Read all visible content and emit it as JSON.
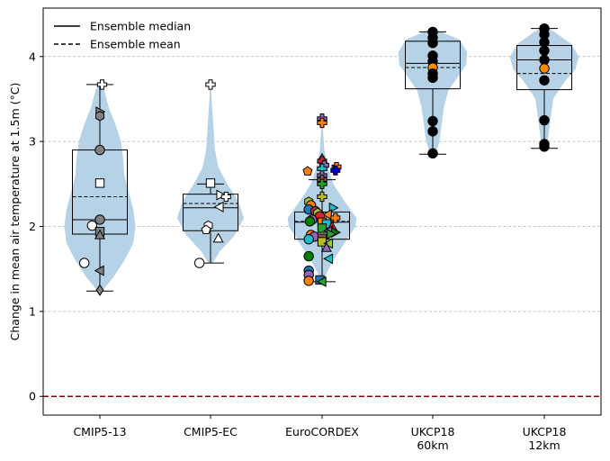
{
  "chart_data": {
    "type": "violin-box-scatter",
    "ylabel": "Change in mean air temperature at 1.5m (°C)",
    "xlabel": "",
    "title": "",
    "ylim": [
      -0.22,
      4.57
    ],
    "yticks": [
      0,
      1,
      2,
      3,
      4
    ],
    "grid": "horizontal dashed at y ticks",
    "zero_line": {
      "y": 0,
      "color": "#8b0000",
      "style": "dashed"
    },
    "legend": {
      "placement": "top-left",
      "entries": [
        {
          "label": "Ensemble median",
          "style": "solid"
        },
        {
          "label": "Ensemble mean",
          "style": "dashed"
        }
      ]
    },
    "categories": [
      {
        "id": "cmip5-13",
        "label_lines": [
          "CMIP5-13"
        ]
      },
      {
        "id": "cmip5-ec",
        "label_lines": [
          "CMIP5-EC"
        ]
      },
      {
        "id": "eurocordex",
        "label_lines": [
          "EuroCORDEX"
        ]
      },
      {
        "id": "ukcp18-60km",
        "label_lines": [
          "UKCP18",
          "60km"
        ]
      },
      {
        "id": "ukcp18-12km",
        "label_lines": [
          "UKCP18",
          "12km"
        ]
      }
    ],
    "violin_color": "#b5d2e6",
    "violins": [
      {
        "min": 1.24,
        "max": 3.68,
        "profile": [
          [
            1.24,
            0.02
          ],
          [
            1.4,
            0.12
          ],
          [
            1.6,
            0.22
          ],
          [
            1.8,
            0.3
          ],
          [
            2.0,
            0.32
          ],
          [
            2.2,
            0.3
          ],
          [
            2.4,
            0.26
          ],
          [
            2.6,
            0.22
          ],
          [
            2.8,
            0.21
          ],
          [
            3.0,
            0.19
          ],
          [
            3.2,
            0.14
          ],
          [
            3.4,
            0.08
          ],
          [
            3.6,
            0.04
          ],
          [
            3.68,
            0.01
          ]
        ]
      },
      {
        "min": 1.57,
        "max": 3.68,
        "profile": [
          [
            1.57,
            0.02
          ],
          [
            1.7,
            0.08
          ],
          [
            1.9,
            0.22
          ],
          [
            2.1,
            0.3
          ],
          [
            2.3,
            0.25
          ],
          [
            2.5,
            0.15
          ],
          [
            2.7,
            0.07
          ],
          [
            2.9,
            0.04
          ],
          [
            3.1,
            0.03
          ],
          [
            3.3,
            0.02
          ],
          [
            3.5,
            0.01
          ],
          [
            3.68,
            0.005
          ]
        ]
      },
      {
        "min": 1.33,
        "max": 3.28,
        "profile": [
          [
            1.33,
            0.01
          ],
          [
            1.45,
            0.04
          ],
          [
            1.6,
            0.1
          ],
          [
            1.8,
            0.2
          ],
          [
            2.0,
            0.3
          ],
          [
            2.1,
            0.31
          ],
          [
            2.3,
            0.2
          ],
          [
            2.5,
            0.1
          ],
          [
            2.7,
            0.05
          ],
          [
            2.9,
            0.02
          ],
          [
            3.1,
            0.01
          ],
          [
            3.28,
            0.005
          ]
        ]
      },
      {
        "min": 2.85,
        "max": 4.3,
        "profile": [
          [
            2.85,
            0.02
          ],
          [
            3.0,
            0.06
          ],
          [
            3.2,
            0.08
          ],
          [
            3.4,
            0.1
          ],
          [
            3.6,
            0.14
          ],
          [
            3.75,
            0.22
          ],
          [
            3.9,
            0.3
          ],
          [
            4.05,
            0.31
          ],
          [
            4.2,
            0.24
          ],
          [
            4.3,
            0.06
          ]
        ]
      },
      {
        "min": 2.92,
        "max": 4.33,
        "profile": [
          [
            2.92,
            0.02
          ],
          [
            3.1,
            0.04
          ],
          [
            3.3,
            0.06
          ],
          [
            3.5,
            0.08
          ],
          [
            3.7,
            0.18
          ],
          [
            3.85,
            0.28
          ],
          [
            4.0,
            0.31
          ],
          [
            4.15,
            0.24
          ],
          [
            4.3,
            0.08
          ],
          [
            4.33,
            0.03
          ]
        ]
      }
    ],
    "boxes": [
      {
        "whisker_low": 1.24,
        "q1": 1.91,
        "median": 2.08,
        "mean": 2.35,
        "q3": 2.9,
        "whisker_high": 3.67
      },
      {
        "whisker_low": 1.57,
        "q1": 1.95,
        "median": 2.22,
        "mean": 2.27,
        "q3": 2.38,
        "whisker_high": 2.5
      },
      {
        "whisker_low": 1.35,
        "q1": 1.85,
        "median": 2.05,
        "mean": 2.06,
        "q3": 2.17,
        "whisker_high": 2.55
      },
      {
        "whisker_low": 2.85,
        "q1": 3.62,
        "median": 3.92,
        "mean": 3.87,
        "q3": 4.18,
        "whisker_high": 4.29
      },
      {
        "whisker_low": 2.92,
        "q1": 3.61,
        "median": 3.96,
        "mean": 3.8,
        "q3": 4.13,
        "whisker_high": 4.33
      }
    ],
    "points": [
      [
        {
          "y": 3.67,
          "m": "plus",
          "c": "#ffffff",
          "dx": 0.02
        },
        {
          "y": 3.35,
          "m": "right",
          "c": "#808080",
          "dx": 0.0
        },
        {
          "y": 3.3,
          "m": "hexagon",
          "c": "#808080",
          "dx": 0.0
        },
        {
          "y": 2.9,
          "m": "circle",
          "c": "#808080",
          "dx": 0.0
        },
        {
          "y": 2.51,
          "m": "square",
          "c": "#ffffff",
          "dx": 0.0
        },
        {
          "y": 2.08,
          "m": "circle",
          "c": "#808080",
          "dx": 0.0
        },
        {
          "y": 2.01,
          "m": "circle",
          "c": "#ffffff",
          "dx": -0.07
        },
        {
          "y": 1.94,
          "m": "square",
          "c": "#808080",
          "dx": 0.0
        },
        {
          "y": 1.9,
          "m": "up",
          "c": "#808080",
          "dx": 0.0
        },
        {
          "y": 1.57,
          "m": "circle",
          "c": "#ffffff",
          "dx": -0.14
        },
        {
          "y": 1.48,
          "m": "left",
          "c": "#808080",
          "dx": 0.0
        },
        {
          "y": 1.25,
          "m": "diamond",
          "c": "#808080",
          "dx": 0.0
        }
      ],
      [
        {
          "y": 3.67,
          "m": "plus",
          "c": "#ffffff",
          "dx": 0.0
        },
        {
          "y": 2.51,
          "m": "square",
          "c": "#ffffff",
          "dx": 0.0
        },
        {
          "y": 2.37,
          "m": "right",
          "c": "#ffffff",
          "dx": 0.09
        },
        {
          "y": 2.35,
          "m": "x",
          "c": "#ffffff",
          "dx": 0.14
        },
        {
          "y": 2.23,
          "m": "left",
          "c": "#ffffff",
          "dx": 0.08
        },
        {
          "y": 2.01,
          "m": "hexagon",
          "c": "#ffffff",
          "dx": -0.02
        },
        {
          "y": 1.96,
          "m": "pentagon",
          "c": "#ffffff",
          "dx": -0.04
        },
        {
          "y": 1.86,
          "m": "up",
          "c": "#ffffff",
          "dx": 0.07
        },
        {
          "y": 1.57,
          "m": "circle",
          "c": "#ffffff",
          "dx": -0.1
        }
      ],
      [
        {
          "y": 3.27,
          "m": "plus",
          "c": "#9467bd",
          "dx": 0.0
        },
        {
          "y": 3.22,
          "m": "plus",
          "c": "#ff7f0e",
          "dx": 0.0
        },
        {
          "y": 2.8,
          "m": "up",
          "c": "#17becf",
          "dx": 0.0
        },
        {
          "y": 2.77,
          "m": "x",
          "c": "#d62728",
          "dx": 0.0
        },
        {
          "y": 2.72,
          "m": "x",
          "c": "#9467bd",
          "dx": 0.02
        },
        {
          "y": 2.7,
          "m": "x",
          "c": "#ff7f0e",
          "dx": 0.13
        },
        {
          "y": 2.68,
          "m": "plus",
          "c": "#17becf",
          "dx": 0.0
        },
        {
          "y": 2.66,
          "m": "x",
          "c": "#0000cd",
          "dx": 0.12
        },
        {
          "y": 2.65,
          "m": "pentagon",
          "c": "#ff7f0e",
          "dx": -0.13
        },
        {
          "y": 2.6,
          "m": "plus",
          "c": "#9467bd",
          "dx": 0.0
        },
        {
          "y": 2.55,
          "m": "plus",
          "c": "#8c564b",
          "dx": 0.0
        },
        {
          "y": 2.5,
          "m": "plus",
          "c": "#2ca02c",
          "dx": 0.0
        },
        {
          "y": 2.35,
          "m": "plus",
          "c": "#bcbd22",
          "dx": 0.0
        },
        {
          "y": 2.29,
          "m": "hexagon",
          "c": "#9acd32",
          "dx": -0.12
        },
        {
          "y": 2.25,
          "m": "circle",
          "c": "#ff7f0e",
          "dx": -0.1
        },
        {
          "y": 2.22,
          "m": "right",
          "c": "#17becf",
          "dx": 0.1
        },
        {
          "y": 2.2,
          "m": "circle",
          "c": "#1f77b4",
          "dx": -0.12
        },
        {
          "y": 2.18,
          "m": "circle",
          "c": "#d62728",
          "dx": -0.06
        },
        {
          "y": 2.16,
          "m": "hexagon",
          "c": "#9acd32",
          "dx": -0.04
        },
        {
          "y": 2.14,
          "m": "left",
          "c": "#ff7f0e",
          "dx": 0.05
        },
        {
          "y": 2.12,
          "m": "circle",
          "c": "#d62728",
          "dx": -0.02
        },
        {
          "y": 2.1,
          "m": "x",
          "c": "#ff7f0e",
          "dx": 0.12
        },
        {
          "y": 2.08,
          "m": "circle",
          "c": "#9467bd",
          "dx": -0.09
        },
        {
          "y": 2.06,
          "m": "circle",
          "c": "#008000",
          "dx": -0.11
        },
        {
          "y": 2.05,
          "m": "square",
          "c": "#ff7f0e",
          "dx": 0.0
        },
        {
          "y": 2.03,
          "m": "square",
          "c": "#17becf",
          "dx": 0.04
        },
        {
          "y": 2.0,
          "m": "up",
          "c": "#d62728",
          "dx": 0.09
        },
        {
          "y": 1.98,
          "m": "square",
          "c": "#2ca02c",
          "dx": 0.0
        },
        {
          "y": 1.95,
          "m": "left",
          "c": "#9467bd",
          "dx": 0.06
        },
        {
          "y": 1.93,
          "m": "right",
          "c": "#008000",
          "dx": 0.12
        },
        {
          "y": 1.91,
          "m": "right",
          "c": "#2ca02c",
          "dx": 0.08
        },
        {
          "y": 1.9,
          "m": "circle",
          "c": "#ff7f0e",
          "dx": -0.1
        },
        {
          "y": 1.88,
          "m": "circle",
          "c": "#9467bd",
          "dx": -0.07
        },
        {
          "y": 1.86,
          "m": "square",
          "c": "#8c564b",
          "dx": 0.0
        },
        {
          "y": 1.85,
          "m": "circle",
          "c": "#17becf",
          "dx": -0.12
        },
        {
          "y": 1.82,
          "m": "square",
          "c": "#bcbd22",
          "dx": 0.0
        },
        {
          "y": 1.8,
          "m": "left",
          "c": "#9acd32",
          "dx": 0.06
        },
        {
          "y": 1.75,
          "m": "up",
          "c": "#9467bd",
          "dx": 0.04
        },
        {
          "y": 1.65,
          "m": "circle",
          "c": "#008000",
          "dx": -0.12
        },
        {
          "y": 1.62,
          "m": "left",
          "c": "#17becf",
          "dx": 0.06
        },
        {
          "y": 1.48,
          "m": "circle",
          "c": "#1f77b4",
          "dx": -0.12
        },
        {
          "y": 1.43,
          "m": "circle",
          "c": "#9467bd",
          "dx": -0.12
        },
        {
          "y": 1.37,
          "m": "square",
          "c": "#1f77b4",
          "dx": -0.02
        },
        {
          "y": 1.36,
          "m": "circle",
          "c": "#ff7f0e",
          "dx": -0.12
        },
        {
          "y": 1.35,
          "m": "left",
          "c": "#2ca02c",
          "dx": 0.0
        }
      ],
      [
        {
          "y": 4.29,
          "m": "circle",
          "c": "#000000",
          "dx": 0.0
        },
        {
          "y": 4.22,
          "m": "circle",
          "c": "#000000",
          "dx": 0.0
        },
        {
          "y": 4.16,
          "m": "circle",
          "c": "#000000",
          "dx": 0.0
        },
        {
          "y": 4.01,
          "m": "circle",
          "c": "#000000",
          "dx": 0.0
        },
        {
          "y": 3.94,
          "m": "circle",
          "c": "#000000",
          "dx": 0.0
        },
        {
          "y": 3.87,
          "m": "circle",
          "c": "#ff8c00",
          "dx": 0.0
        },
        {
          "y": 3.8,
          "m": "circle",
          "c": "#000000",
          "dx": 0.0
        },
        {
          "y": 3.75,
          "m": "circle",
          "c": "#000000",
          "dx": 0.0
        },
        {
          "y": 3.24,
          "m": "circle",
          "c": "#000000",
          "dx": 0.0
        },
        {
          "y": 3.12,
          "m": "circle",
          "c": "#000000",
          "dx": 0.0
        },
        {
          "y": 2.86,
          "m": "circle",
          "c": "#000000",
          "dx": 0.0
        }
      ],
      [
        {
          "y": 4.33,
          "m": "circle",
          "c": "#000000",
          "dx": 0.0
        },
        {
          "y": 4.26,
          "m": "circle",
          "c": "#000000",
          "dx": 0.0
        },
        {
          "y": 4.17,
          "m": "circle",
          "c": "#000000",
          "dx": 0.0
        },
        {
          "y": 4.07,
          "m": "circle",
          "c": "#000000",
          "dx": 0.0
        },
        {
          "y": 3.96,
          "m": "circle",
          "c": "#000000",
          "dx": 0.0
        },
        {
          "y": 3.86,
          "m": "circle",
          "c": "#ff8c00",
          "dx": 0.0
        },
        {
          "y": 3.72,
          "m": "circle",
          "c": "#000000",
          "dx": 0.0
        },
        {
          "y": 3.25,
          "m": "circle",
          "c": "#000000",
          "dx": 0.0
        },
        {
          "y": 2.97,
          "m": "circle",
          "c": "#000000",
          "dx": 0.0
        },
        {
          "y": 2.94,
          "m": "circle",
          "c": "#000000",
          "dx": 0.0
        }
      ]
    ]
  }
}
